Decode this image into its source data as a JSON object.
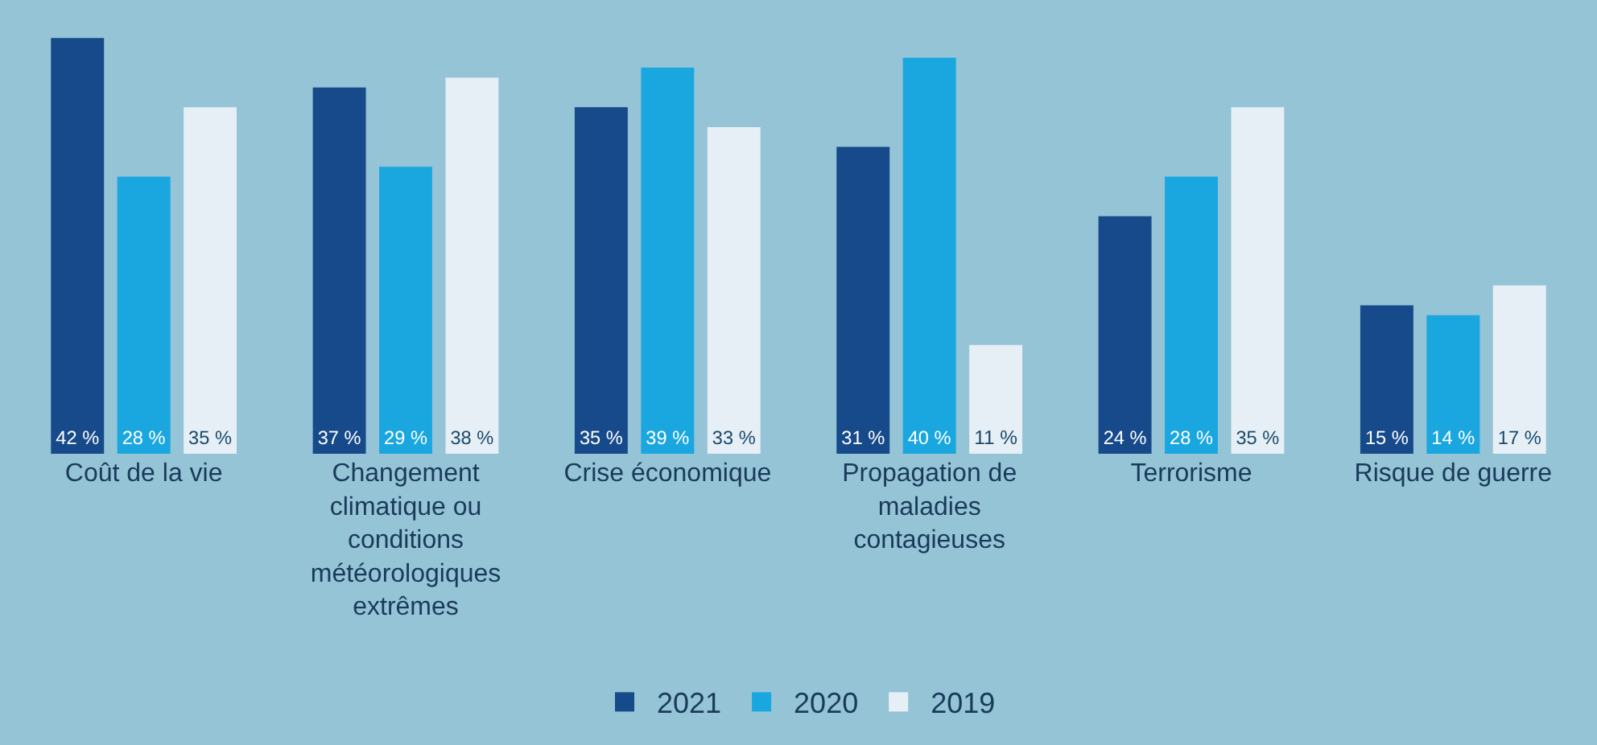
{
  "chart_data": {
    "type": "bar",
    "categories": [
      "Coût de la vie",
      "Changement climatique ou conditions météorologiques extrêmes",
      "Crise économique",
      "Propagation de maladies contagieuses",
      "Terrorisme",
      "Risque de guerre"
    ],
    "series": [
      {
        "name": "2021",
        "color": "#174a8a",
        "values": [
          42,
          37,
          35,
          31,
          24,
          15
        ],
        "value_labels": [
          "42 %",
          "37 %",
          "35 %",
          "31 %",
          "24 %",
          "15 %"
        ]
      },
      {
        "name": "2020",
        "color": "#1aa7e0",
        "values": [
          28,
          29,
          39,
          40,
          28,
          14
        ],
        "value_labels": [
          "28 %",
          "29 %",
          "39 %",
          "40 %",
          "28 %",
          "14 %"
        ]
      },
      {
        "name": "2019",
        "color": "#e6eef6",
        "values": [
          35,
          38,
          33,
          11,
          35,
          17
        ],
        "value_labels": [
          "35 %",
          "38 %",
          "33 %",
          "11 %",
          "35 %",
          "17 %"
        ]
      }
    ],
    "legend": "bottom",
    "grid": false
  }
}
